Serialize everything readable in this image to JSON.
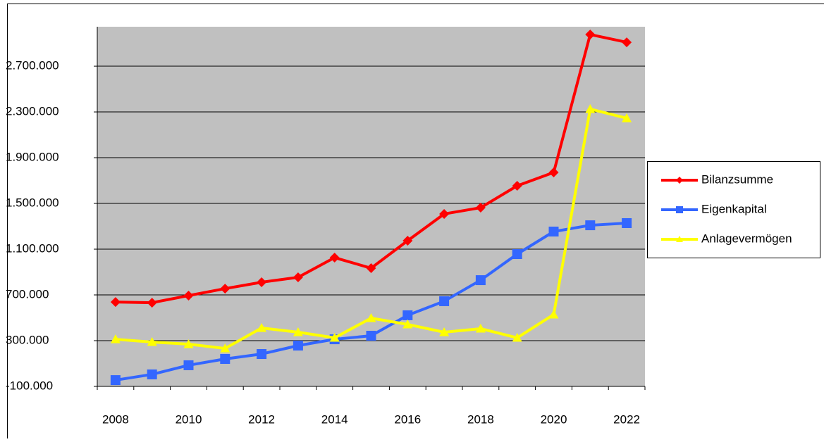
{
  "chart_data": {
    "type": "line",
    "categories": [
      "2008",
      null,
      "2010",
      null,
      "2012",
      null,
      "2014",
      null,
      "2016",
      null,
      "2018",
      null,
      "2020",
      null,
      "2022"
    ],
    "series": [
      {
        "name": "Bilanzsumme",
        "color": "#ff0000",
        "marker": "diamond",
        "values": [
          638000,
          632000,
          694000,
          755000,
          811000,
          854000,
          1026000,
          934000,
          1174000,
          1408000,
          1463000,
          1654000,
          1771000,
          2977000,
          2909000
        ]
      },
      {
        "name": "Eigenkapital",
        "color": "#3366ff",
        "marker": "square",
        "values": [
          -45000,
          5000,
          85000,
          140000,
          183000,
          257000,
          312000,
          343000,
          522000,
          645000,
          829000,
          1057000,
          1254000,
          1309000,
          1328000
        ]
      },
      {
        "name": "Anlagevermögen",
        "color": "#ffff00",
        "marker": "triangle",
        "values": [
          312000,
          288000,
          269000,
          232000,
          411000,
          374000,
          325000,
          497000,
          442000,
          374000,
          405000,
          325000,
          528000,
          2325000,
          2245000
        ]
      }
    ],
    "ylim": [
      -100000,
      3045000
    ],
    "yticks": [
      {
        "value": -100000,
        "label": "-100.000"
      },
      {
        "value": 300000,
        "label": "300.000"
      },
      {
        "value": 700000,
        "label": "700.000"
      },
      {
        "value": 1100000,
        "label": "1.100.000"
      },
      {
        "value": 1500000,
        "label": "1.500.000"
      },
      {
        "value": 1900000,
        "label": "1.900.000"
      },
      {
        "value": 2300000,
        "label": "2.300.000"
      },
      {
        "value": 2700000,
        "label": "2.700.000"
      }
    ],
    "grid": true,
    "legend": "right"
  }
}
